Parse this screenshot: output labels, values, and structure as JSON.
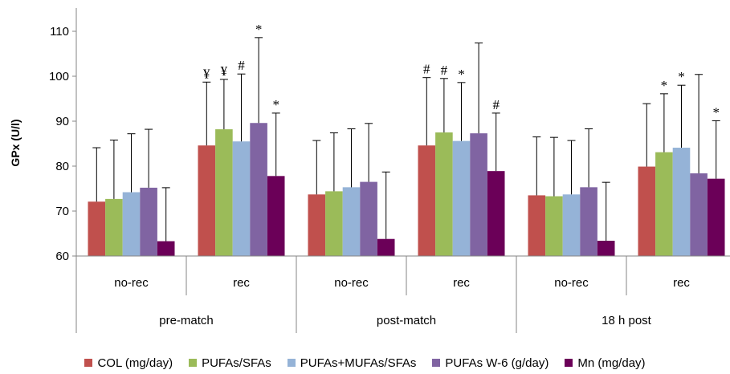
{
  "chart_data": {
    "type": "bar",
    "ylabel": "GPx (U/l)",
    "ylim": [
      60,
      115
    ],
    "yticks": [
      60,
      70,
      80,
      90,
      100,
      110
    ],
    "groups": [
      {
        "label": "pre-match",
        "subgroups": [
          "no-rec",
          "rec"
        ]
      },
      {
        "label": "post-match",
        "subgroups": [
          "no-rec",
          "rec"
        ]
      },
      {
        "label": "18 h post",
        "subgroups": [
          "no-rec",
          "rec"
        ]
      }
    ],
    "categories": [
      "pre-match no-rec",
      "pre-match rec",
      "post-match no-rec",
      "post-match rec",
      "18 h post no-rec",
      "18 h post rec"
    ],
    "series": [
      {
        "name": "COL (mg/day)",
        "color": "#C0504D",
        "values": [
          72.1,
          84.6,
          73.7,
          84.6,
          73.5,
          79.9
        ],
        "error_upper": [
          84.1,
          98.7,
          85.7,
          99.7,
          86.5,
          93.9
        ],
        "annotations": [
          "",
          "¥",
          "",
          "#",
          "",
          ""
        ]
      },
      {
        "name": "PUFAs/SFAs",
        "color": "#9BBB59",
        "values": [
          72.7,
          88.2,
          74.4,
          87.5,
          73.3,
          83.1
        ],
        "error_upper": [
          85.8,
          99.3,
          87.4,
          99.5,
          86.4,
          96.1
        ],
        "annotations": [
          "",
          "¥",
          "",
          "#",
          "",
          "*"
        ]
      },
      {
        "name": "PUFAs+MUFAs/SFAs",
        "color": "#95B3D7",
        "values": [
          74.2,
          85.5,
          75.3,
          85.6,
          73.7,
          84.1
        ],
        "error_upper": [
          87.2,
          100.5,
          88.3,
          98.6,
          85.7,
          98.0
        ],
        "annotations": [
          "",
          "#",
          "",
          "*",
          "",
          "*"
        ]
      },
      {
        "name": "PUFAs W-6 (g/day)",
        "color": "#8064A2",
        "values": [
          75.2,
          89.6,
          76.5,
          87.3,
          75.3,
          78.4
        ],
        "error_upper": [
          88.2,
          108.6,
          89.5,
          107.4,
          88.3,
          100.4
        ],
        "annotations": [
          "",
          "*",
          "",
          "",
          "",
          ""
        ]
      },
      {
        "name": "Mn (mg/day)",
        "color": "#6B0058",
        "values": [
          63.3,
          77.8,
          63.8,
          78.9,
          63.4,
          77.2
        ],
        "error_upper": [
          75.2,
          91.8,
          78.7,
          91.8,
          76.4,
          90.1
        ],
        "annotations": [
          "",
          "*",
          "",
          "#",
          "",
          "*"
        ]
      }
    ],
    "grid": false,
    "legend_position": "bottom"
  }
}
